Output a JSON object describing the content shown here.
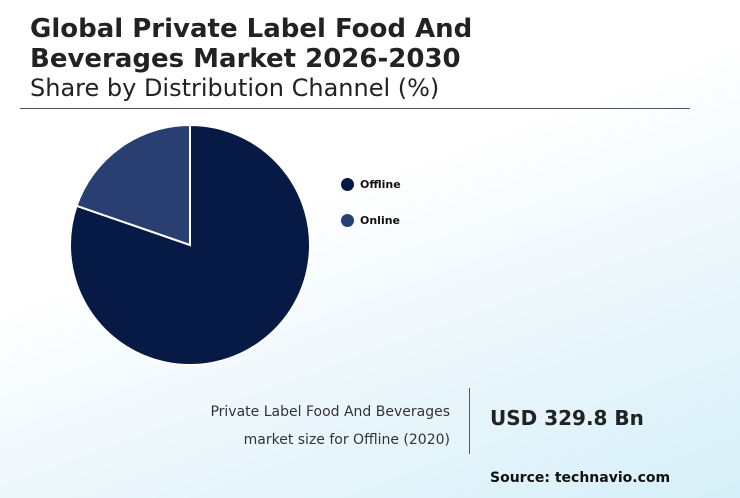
{
  "header": {
    "title": "Global Private Label Food And Beverages Market 2026-2030",
    "subtitle": "Share by Distribution Channel (%)"
  },
  "chart_data": {
    "type": "pie",
    "categories": [
      "Offline",
      "Online"
    ],
    "values": [
      80.3,
      19.7
    ],
    "colors": [
      "#071a45",
      "#293f72"
    ],
    "legend_position": "right"
  },
  "kpi": {
    "label_line1": "Private Label Food And Beverages",
    "label_line2": "market size for Offline (2020)",
    "value": "USD 329.8 Bn"
  },
  "footer": {
    "source": "Source: technavio.com"
  }
}
